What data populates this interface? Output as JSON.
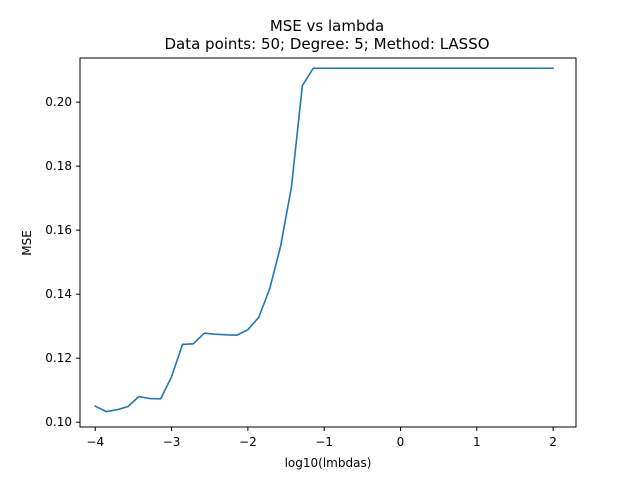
{
  "chart_data": {
    "type": "line",
    "title": "MSE vs lambda",
    "subtitle": "Data points: 50; Degree: 5; Method: LASSO",
    "xlabel": "log10(lmbdas)",
    "ylabel": "MSE",
    "xlim": [
      -4.2,
      2.3
    ],
    "ylim": [
      0.0985,
      0.2138
    ],
    "xticks": [
      -4,
      -3,
      -2,
      -1,
      0,
      1,
      2
    ],
    "xtick_labels": [
      "−4",
      "−3",
      "−2",
      "−1",
      "0",
      "1",
      "2"
    ],
    "yticks": [
      0.1,
      0.12,
      0.14,
      0.16,
      0.18,
      0.2
    ],
    "ytick_labels": [
      "0.10",
      "0.12",
      "0.14",
      "0.16",
      "0.18",
      "0.20"
    ],
    "grid": false,
    "line_color": "#1f77b4",
    "series": [
      {
        "x": [
          -4.0,
          -3.857,
          -3.714,
          -3.571,
          -3.429,
          -3.286,
          -3.143,
          -3.0,
          -2.857,
          -2.714,
          -2.571,
          -2.429,
          -2.286,
          -2.143,
          -2.0,
          -1.857,
          -1.714,
          -1.571,
          -1.429,
          -1.286,
          -1.143,
          -1.0,
          -0.857,
          2.0
        ],
        "y": [
          0.105,
          0.1033,
          0.1039,
          0.1049,
          0.108,
          0.1074,
          0.1073,
          0.1142,
          0.1243,
          0.1245,
          0.1278,
          0.1275,
          0.1273,
          0.1272,
          0.1289,
          0.1328,
          0.1417,
          0.155,
          0.1735,
          0.2052,
          0.2106,
          0.2106,
          0.2106,
          0.2106
        ]
      }
    ]
  }
}
